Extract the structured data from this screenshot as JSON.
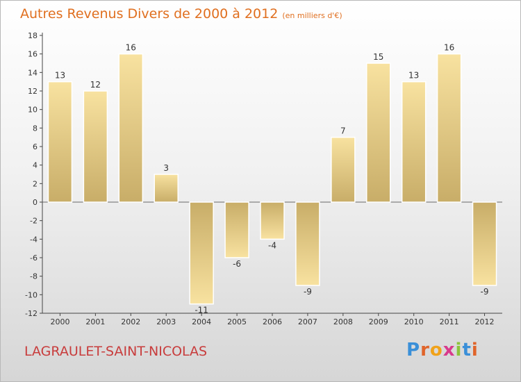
{
  "title": "Autres Revenus Divers de 2000 à 2012",
  "subtitle": "(en milliers d'€)",
  "location": "LAGRAULET-SAINT-NICOLAS",
  "brand": {
    "letters": [
      "P",
      "r",
      "o",
      "x",
      "i",
      "t",
      "i"
    ],
    "colors": [
      "#3a8fd8",
      "#e0642a",
      "#f0a21a",
      "#d83a8c",
      "#8cc43a",
      "#3a8fd8",
      "#e0642a"
    ]
  },
  "colors": {
    "bar_light": "#f8e2a0",
    "bar_dark": "#c8ad68",
    "title": "#e06f1f",
    "location": "#c83c3c"
  },
  "chart_data": {
    "type": "bar",
    "categories": [
      "2000",
      "2001",
      "2002",
      "2003",
      "2004",
      "2005",
      "2006",
      "2007",
      "2008",
      "2009",
      "2010",
      "2011",
      "2012"
    ],
    "values": [
      13,
      12,
      16,
      3,
      -11,
      -6,
      -4,
      -9,
      7,
      15,
      13,
      16,
      -9
    ],
    "ylim": [
      -12,
      18
    ],
    "yticks": [
      18,
      16,
      14,
      12,
      10,
      8,
      6,
      4,
      2,
      0,
      -2,
      -4,
      -6,
      -8,
      -10,
      -12
    ],
    "xlabel": "",
    "ylabel": "",
    "grid": false,
    "legend": "none"
  }
}
